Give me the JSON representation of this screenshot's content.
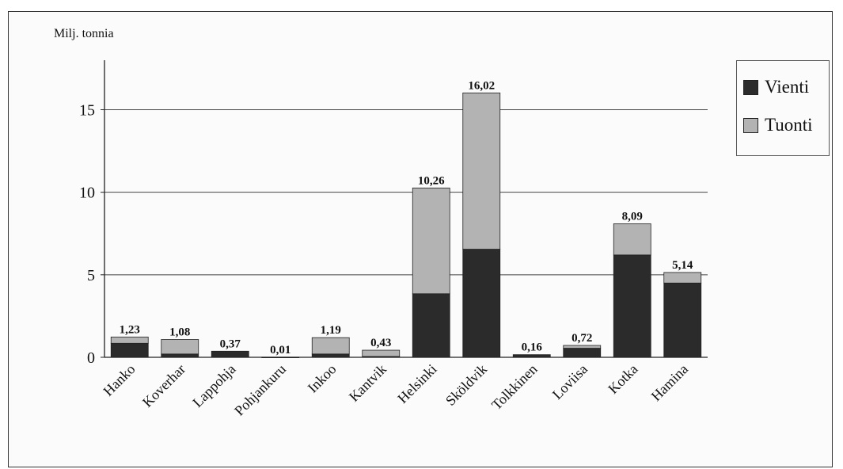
{
  "chart_data": {
    "type": "bar",
    "stacked": true,
    "ylabel": "Milj. tonnia",
    "ylim": [
      0,
      18
    ],
    "yticks": [
      0,
      5,
      10,
      15
    ],
    "grid": true,
    "legend_position": "top-right",
    "categories": [
      "Hanko",
      "Koverhar",
      "Lappohja",
      "Pohjankuru",
      "Inkoo",
      "Kantvik",
      "Helsinki",
      "Sköldvik",
      "Tolkkinen",
      "Loviisa",
      "Kotka",
      "Hamina"
    ],
    "totals": [
      "1,23",
      "1,08",
      "0,37",
      "0,01",
      "1,19",
      "0,43",
      "10,26",
      "16,02",
      "0,16",
      "0,72",
      "8,09",
      "5,14"
    ],
    "series": [
      {
        "name": "Vienti",
        "color": "#2b2b2b",
        "values": [
          0.85,
          0.2,
          0.37,
          0.0,
          0.2,
          0.05,
          3.85,
          6.55,
          0.16,
          0.55,
          6.2,
          4.5
        ]
      },
      {
        "name": "Tuonti",
        "color": "#b3b3b3",
        "values": [
          0.38,
          0.88,
          0.0,
          0.01,
          0.99,
          0.38,
          6.41,
          9.47,
          0.0,
          0.17,
          1.89,
          0.64
        ]
      }
    ]
  }
}
